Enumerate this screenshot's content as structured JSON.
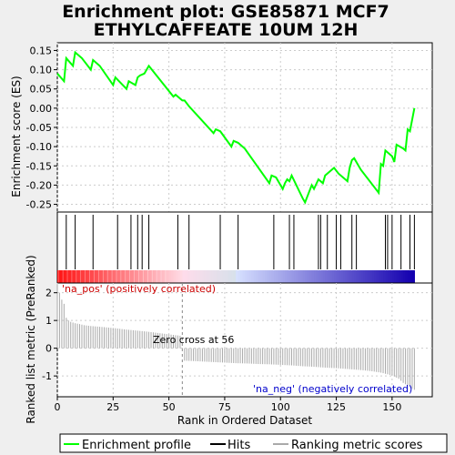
{
  "title_line1": "Enrichment plot: GSE85871 MCF7",
  "title_line2": "ETHYLCAFFEATE 10UM 12H",
  "colors": {
    "es_line": "#00ff00",
    "hits": "#000000",
    "metric": "#aaaaaa",
    "pos_label": "#cc0000",
    "neg_label": "#0000cc",
    "zero_line": "#888888"
  },
  "chart_data": [
    {
      "type": "line",
      "name": "enrichment-score",
      "ylabel": "Enrichment score (ES)",
      "xlim": [
        0,
        168
      ],
      "ylim": [
        -0.27,
        0.17
      ],
      "yticks": [
        -0.25,
        -0.2,
        -0.15,
        -0.1,
        -0.05,
        0.0,
        0.05,
        0.1,
        0.15
      ],
      "grid": true,
      "x": [
        0,
        3,
        4,
        7,
        8,
        11,
        15,
        16,
        19,
        25,
        26,
        31,
        32,
        35,
        36,
        37,
        39,
        40,
        41,
        52,
        53,
        56,
        57,
        59,
        70,
        71,
        73,
        78,
        79,
        81,
        84,
        95,
        96,
        98,
        101,
        102,
        103,
        104,
        105,
        110,
        111,
        114,
        115,
        117,
        119,
        120,
        123,
        124,
        126,
        130,
        131,
        132,
        133,
        136,
        144,
        145,
        146,
        147,
        148,
        150,
        151,
        152,
        155,
        156,
        157,
        158,
        160
      ],
      "y": [
        0.09,
        0.07,
        0.13,
        0.11,
        0.145,
        0.13,
        0.1,
        0.125,
        0.11,
        0.06,
        0.08,
        0.05,
        0.07,
        0.06,
        0.08,
        0.085,
        0.09,
        0.1,
        0.11,
        0.03,
        0.035,
        0.02,
        0.02,
        0.005,
        -0.065,
        -0.055,
        -0.06,
        -0.1,
        -0.085,
        -0.09,
        -0.105,
        -0.195,
        -0.175,
        -0.18,
        -0.21,
        -0.195,
        -0.185,
        -0.19,
        -0.175,
        -0.235,
        -0.245,
        -0.2,
        -0.21,
        -0.185,
        -0.195,
        -0.175,
        -0.16,
        -0.155,
        -0.17,
        -0.19,
        -0.155,
        -0.135,
        -0.13,
        -0.16,
        -0.22,
        -0.145,
        -0.15,
        -0.11,
        -0.115,
        -0.125,
        -0.14,
        -0.095,
        -0.105,
        -0.11,
        -0.055,
        -0.06,
        0.0
      ]
    },
    {
      "type": "bar",
      "name": "hits",
      "x": [
        4,
        8,
        16,
        27,
        33,
        36,
        38,
        41,
        54,
        59,
        73,
        81,
        97,
        104,
        106,
        117,
        118,
        121,
        125,
        127,
        132,
        134,
        147,
        148,
        150,
        154,
        158,
        160
      ]
    },
    {
      "type": "bar",
      "name": "ranked-list-metric",
      "ylabel": "Ranked list metric (PreRanked)",
      "xlabel": "Rank in Ordered Dataset",
      "xlim": [
        0,
        168
      ],
      "ylim": [
        -1.75,
        2.35
      ],
      "xticks": [
        0,
        25,
        50,
        75,
        100,
        125,
        150
      ],
      "yticks": [
        -1,
        0,
        1,
        2
      ],
      "zero_cross": 56,
      "x": [
        0,
        1,
        2,
        3,
        4,
        5,
        6,
        8,
        10,
        12,
        15,
        18,
        22,
        26,
        30,
        35,
        40,
        45,
        50,
        55,
        56,
        57,
        60,
        65,
        70,
        75,
        80,
        85,
        90,
        95,
        100,
        105,
        110,
        115,
        120,
        125,
        130,
        135,
        140,
        145,
        150,
        153,
        155,
        157,
        159,
        160
      ],
      "values": [
        2.3,
        2.0,
        1.75,
        1.6,
        1.1,
        1.0,
        0.95,
        0.9,
        0.87,
        0.83,
        0.8,
        0.78,
        0.75,
        0.72,
        0.68,
        0.64,
        0.6,
        0.55,
        0.5,
        0.45,
        0.02,
        -0.45,
        -0.46,
        -0.48,
        -0.5,
        -0.52,
        -0.54,
        -0.55,
        -0.57,
        -0.58,
        -0.6,
        -0.62,
        -0.65,
        -0.67,
        -0.7,
        -0.72,
        -0.75,
        -0.78,
        -0.82,
        -0.88,
        -0.98,
        -1.1,
        -1.25,
        -1.35,
        -1.45,
        -1.5
      ]
    }
  ],
  "annotations": {
    "pos_label": "'na_pos' (positively correlated)",
    "neg_label": "'na_neg' (negatively correlated)",
    "zero_cross_label": "Zero cross at 56"
  },
  "legend": {
    "items": [
      {
        "label": "Enrichment profile",
        "color": "#00ff00"
      },
      {
        "label": "Hits",
        "color": "#000000"
      },
      {
        "label": "Ranking metric scores",
        "color": "#aaaaaa"
      }
    ]
  }
}
